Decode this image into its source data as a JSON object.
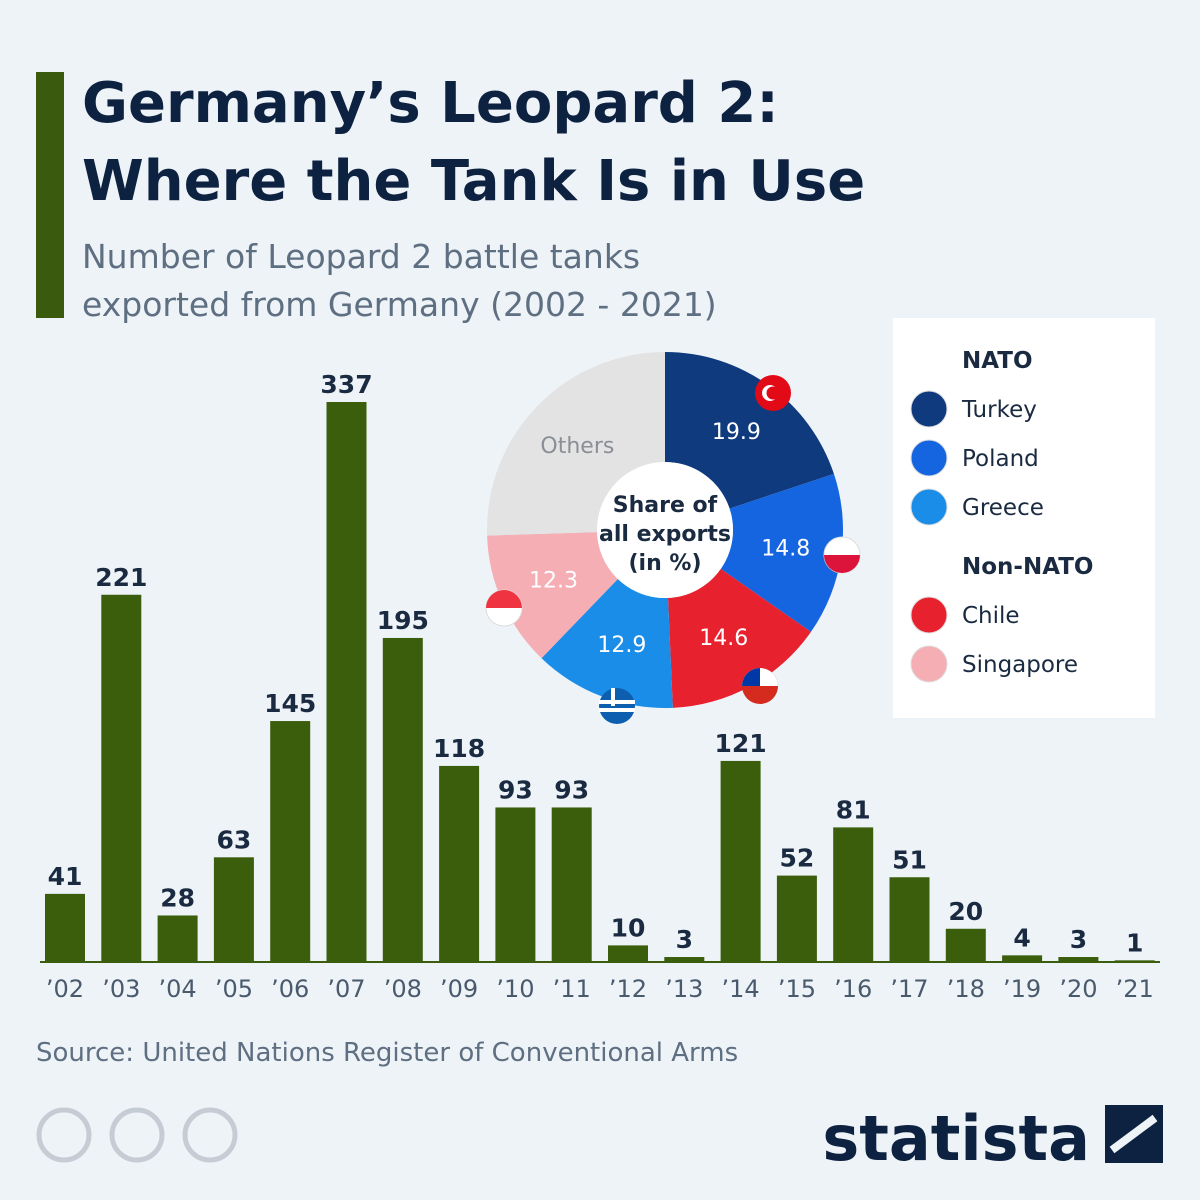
{
  "header": {
    "title": [
      "Germany’s Leopard 2:",
      "Where the Tank Is in Use"
    ],
    "subtitle": [
      "Number of Leopard 2 battle tanks",
      "exported from Germany (2002 - 2021)"
    ]
  },
  "chart_data": [
    {
      "type": "bar",
      "categories": [
        "’02",
        "’03",
        "’04",
        "’05",
        "’06",
        "’07",
        "’08",
        "’09",
        "’10",
        "’11",
        "’12",
        "’13",
        "’14",
        "’15",
        "’16",
        "’17",
        "’18",
        "’19",
        "’20",
        "’21"
      ],
      "values": [
        41,
        221,
        28,
        63,
        145,
        337,
        195,
        118,
        93,
        93,
        10,
        3,
        121,
        52,
        81,
        51,
        20,
        4,
        3,
        1
      ],
      "color": "#3b5e0c"
    },
    {
      "type": "pie",
      "center_label": [
        "Share of",
        "all exports",
        "(in %)"
      ],
      "categories": [
        "Turkey",
        "Poland",
        "Chile",
        "Greece",
        "Singapore",
        "Others"
      ],
      "values": [
        19.9,
        14.8,
        14.6,
        12.9,
        12.3,
        25.5
      ],
      "colors": [
        "#0f3a7d",
        "#1565e0",
        "#e8212e",
        "#1a8de8",
        "#f5aeb4",
        "#e3e3e3"
      ],
      "legend_groups": [
        "NATO",
        "Non-NATO"
      ]
    }
  ],
  "source": "Source: United Nations Register of Conventional Arms",
  "brand": "statista"
}
